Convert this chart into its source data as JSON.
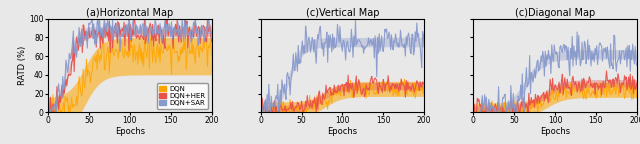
{
  "titles": [
    "(a)Horizontal Map",
    "(c)Vertical Map",
    "(c)Diagonal Map"
  ],
  "xlabel": "Epochs",
  "ylabel": "RATD (%)",
  "xlim": [
    0,
    200
  ],
  "ylim": [
    0,
    100
  ],
  "colors": {
    "DQN": "#FFA500",
    "DQN+HER": "#E8504A",
    "DQN+SAR": "#8899CC"
  },
  "legend_labels": [
    "DQN",
    "DQN+HER",
    "DQN+SAR"
  ],
  "n_points": 201,
  "bg_color": "#E8E8E8"
}
